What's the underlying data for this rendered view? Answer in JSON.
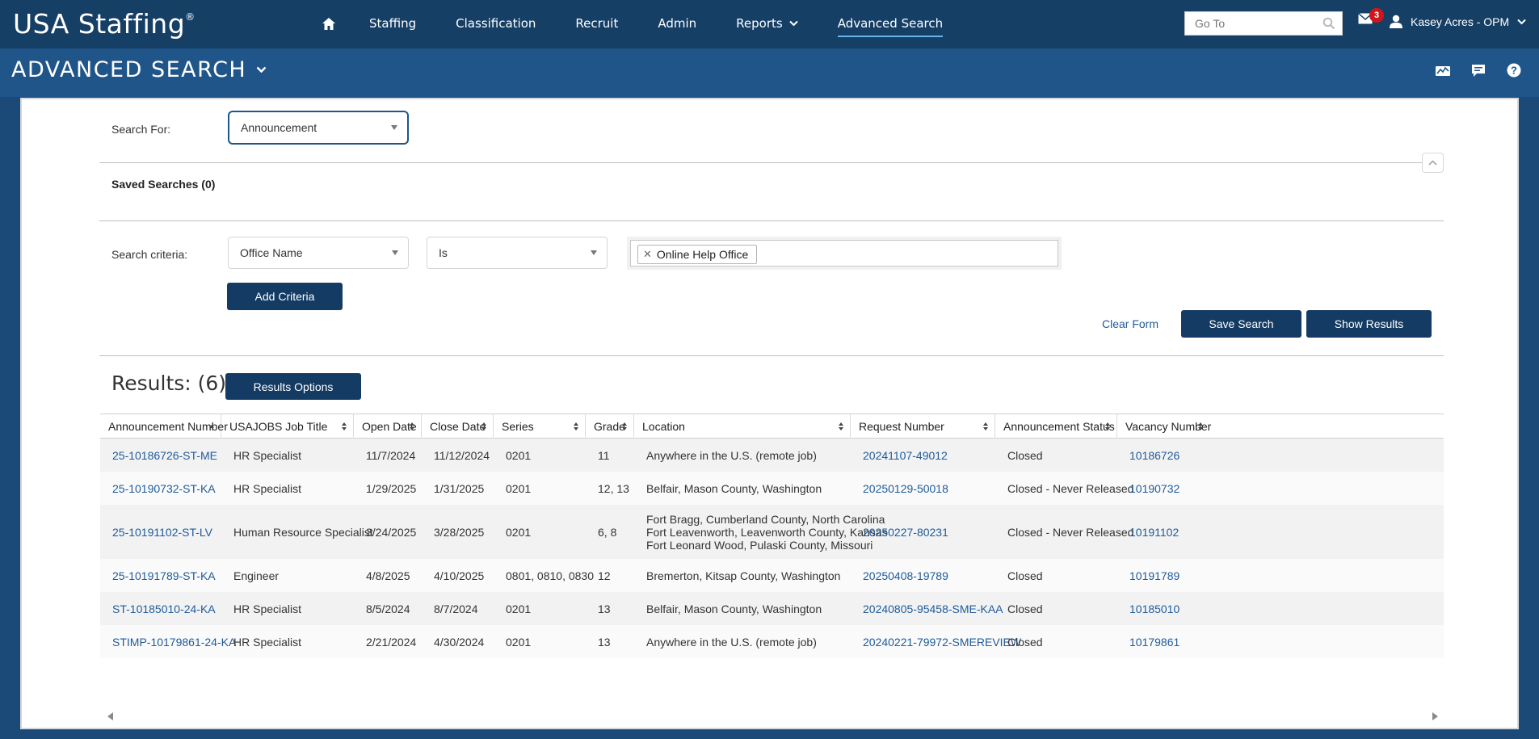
{
  "brand": {
    "name": "USA Staffing",
    "mark": "®"
  },
  "nav": {
    "items": [
      {
        "label": "Staffing"
      },
      {
        "label": "Classification"
      },
      {
        "label": "Recruit"
      },
      {
        "label": "Admin"
      },
      {
        "label": "Reports"
      },
      {
        "label": "Advanced Search"
      }
    ],
    "goto_placeholder": "Go To",
    "notification_count": "3",
    "user_name": "Kasey Acres - OPM"
  },
  "page": {
    "title": "ADVANCED SEARCH"
  },
  "search": {
    "search_for_label": "Search For:",
    "search_for_value": "Announcement",
    "saved_searches": "Saved Searches (0)",
    "criteria_label": "Search criteria:",
    "criteria_field": "Office Name",
    "criteria_operator": "Is",
    "criteria_value": "Online Help Office",
    "add_criteria": "Add Criteria",
    "clear_form": "Clear Form",
    "save_search": "Save Search",
    "show_results": "Show Results"
  },
  "results": {
    "title": "Results: (6)",
    "options_button": "Results Options",
    "columns": [
      "Announcement Number",
      "USAJOBS Job Title",
      "Open Date",
      "Close Date",
      "Series",
      "Grade",
      "Location",
      "Request Number",
      "Announcement Status",
      "Vacancy Number"
    ],
    "rows": [
      {
        "announcement": "25-10186726-ST-ME",
        "title": "HR Specialist",
        "open": "11/7/2024",
        "close": "11/12/2024",
        "series": "0201",
        "grade": "11",
        "location": [
          "Anywhere in the U.S. (remote job)"
        ],
        "request": "20241107-49012",
        "status": "Closed",
        "vacancy": "10186726"
      },
      {
        "announcement": "25-10190732-ST-KA",
        "title": "HR Specialist",
        "open": "1/29/2025",
        "close": "1/31/2025",
        "series": "0201",
        "grade": "12, 13",
        "location": [
          "Belfair, Mason County, Washington"
        ],
        "request": "20250129-50018",
        "status": "Closed - Never Released",
        "vacancy": "10190732"
      },
      {
        "announcement": "25-10191102-ST-LV",
        "title": "Human Resource Specialist",
        "open": "3/24/2025",
        "close": "3/28/2025",
        "series": "0201",
        "grade": "6, 8",
        "location": [
          "Fort Bragg, Cumberland County, North Carolina",
          "Fort Leavenworth, Leavenworth County, Kansas",
          "Fort Leonard Wood, Pulaski County, Missouri"
        ],
        "request": "20250227-80231",
        "status": "Closed - Never Released",
        "vacancy": "10191102"
      },
      {
        "announcement": "25-10191789-ST-KA",
        "title": "Engineer",
        "open": "4/8/2025",
        "close": "4/10/2025",
        "series": "0801, 0810, 0830",
        "grade": "12",
        "location": [
          "Bremerton, Kitsap County, Washington"
        ],
        "request": "20250408-19789",
        "status": "Closed",
        "vacancy": "10191789"
      },
      {
        "announcement": "ST-10185010-24-KA",
        "title": "HR Specialist",
        "open": "8/5/2024",
        "close": "8/7/2024",
        "series": "0201",
        "grade": "13",
        "location": [
          "Belfair, Mason County, Washington"
        ],
        "request": "20240805-95458-SME-KAA",
        "status": "Closed",
        "vacancy": "10185010"
      },
      {
        "announcement": "STIMP-10179861-24-KA",
        "title": "HR Specialist",
        "open": "2/21/2024",
        "close": "4/30/2024",
        "series": "0201",
        "grade": "13",
        "location": [
          "Anywhere in the U.S. (remote job)"
        ],
        "request": "20240221-79972-SMEREVIEW",
        "status": "Closed",
        "vacancy": "10179861"
      }
    ]
  },
  "colors": {
    "nav_bg": "#163f66",
    "header_bg": "#1f5588",
    "button": "#143b63",
    "link": "#1f5b9a",
    "badge": "#d0161b"
  }
}
